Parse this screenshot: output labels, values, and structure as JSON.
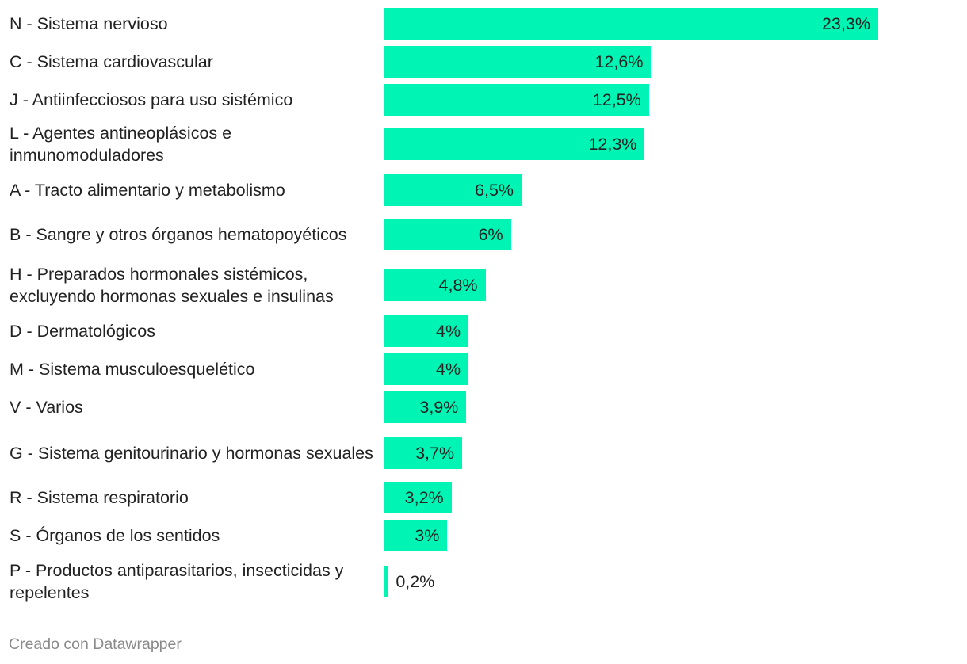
{
  "chart_data": {
    "type": "bar",
    "orientation": "horizontal",
    "bar_color": "#00f5b4",
    "text_color": "#222222",
    "xlim": [
      0,
      23.3
    ],
    "categories": [
      "N - Sistema nervioso",
      "C - Sistema cardiovascular",
      "J - Antiinfecciosos para uso sistémico",
      "L - Agentes antineoplásicos e inmunomoduladores",
      "A - Tracto alimentario y metabolismo",
      "B - Sangre y otros órganos hematopoyéticos",
      "H - Preparados hormonales sistémicos, excluyendo hormonas sexuales e insulinas",
      "D - Dermatológicos",
      "M - Sistema musculoesquelético",
      "V - Varios",
      "G - Sistema genitourinario y hormonas sexuales",
      "R - Sistema respiratorio",
      "S - Órganos de los sentidos",
      "P - Productos antiparasitarios, insecticidas y repelentes"
    ],
    "values": [
      23.3,
      12.6,
      12.5,
      12.3,
      6.5,
      6.0,
      4.8,
      4.0,
      4.0,
      3.9,
      3.7,
      3.2,
      3.0,
      0.2
    ],
    "value_labels": [
      "23,3%",
      "12,6%",
      "12,5%",
      "12,3%",
      "6,5%",
      "6%",
      "4,8%",
      "4%",
      "4%",
      "3,9%",
      "3,7%",
      "3,2%",
      "3%",
      "0,2%"
    ]
  },
  "footer": {
    "credit": "Creado con Datawrapper"
  }
}
